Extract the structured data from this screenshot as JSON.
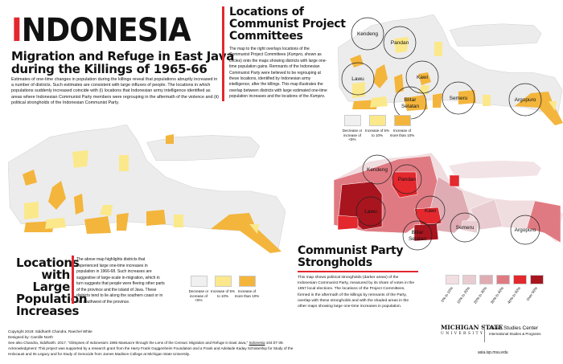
{
  "header": {
    "title_initial": "I",
    "title_rest": "NDONESIA",
    "subtitle": "Migration and Refuge in East Java during the Killings of 1965-66",
    "intro": "Estimates of one-time changes in population during the killings reveal that populations abruptly increased in a number of districts. Such estimates are consistent with large influxes of people. The locations in which populations suddenly increased coincide with (i) locations that Indonesian army intelligence identified as areas where Indonesian Communist Party members were regrouping in the aftermath of the violence and (ii) political strongholds of the Indonesian Communist Party."
  },
  "kompro": {
    "heading": "Locations of Communist Project Committees",
    "body_1": "The map to the right overlays locations of the Communist Project Committees (",
    "body_em": "Kompro",
    "body_2": ", shown as circles) onto the maps showing districts with large one-time population gains. Remnants of the Indonesian Communist Party were believed to be regrouping at these locations, identified by Indonesian army intelligence, after the killings. This map illustrates the overlap between districts with large estimated one-time population increases and the locations of the ",
    "body_em2": "Kompro",
    "body_3": "."
  },
  "places": [
    "Kendeng",
    "Pandan",
    "Lawu",
    "Kawi",
    "Blitar",
    "Selatan",
    "Semeru",
    "Argopuro"
  ],
  "population": {
    "heading": "Locations with Large Population Increases",
    "body": "The above map highlights districts that experienced large one-time increases in population in 1966-68. Such increases are suggestive of large-scale in-migration, which in turn suggests that people were fleeing other parts of the province and the island of Java. These districts tend to lie along the southern coast or in the southwest of the province.",
    "legend": [
      {
        "label": "Decrease or increase of <5%",
        "color": "#f0f0f0"
      },
      {
        "label": "Increase of 5% to 10%",
        "color": "#fbe88a"
      },
      {
        "label": "Increase of more than 10%",
        "color": "#f3b53c"
      }
    ]
  },
  "strongholds": {
    "heading": "Communist Party Strongholds",
    "body": "This map shows political strongholds (darker areas) of the Indonesian Communist Party, measured by its share of votes in the 1957 local elections. The locations of the Project Committees, formed in the aftermath of the killings by remnants of the Party, overlap with these strongholds and with the shaded areas in the other maps showing large one-time increases in population.",
    "legend": [
      {
        "label": "0% to 10%",
        "color": "#f2dfe2"
      },
      {
        "label": "10% to 20%",
        "color": "#e9ccd1"
      },
      {
        "label": "20% to 30%",
        "color": "#dfacb4"
      },
      {
        "label": "30% to 40%",
        "color": "#e07a82"
      },
      {
        "label": "40% to 50%",
        "color": "#e3282e"
      },
      {
        "label": "Over 50%",
        "color": "#a8151f"
      }
    ]
  },
  "credits": {
    "copyright": "Copyright 2018: Siddharth Chandra, Raechel White",
    "designed": "Designed by: Camille North",
    "see_also_1": "See also Chandra, Siddharth. 2017. \"Glimpses of Indonesia's 1965 Massacre through the Lens of the Census: Migration and Refuge in East Java,\" ",
    "see_also_journal": "Indonesia",
    "see_also_2": " 104:07-39.",
    "ack": "Acknowledgment: This project was supported by a research grant from the Harry Frank Guggenheim Foundation and a Frank and Adelaide Kaday Scholarship for Study of the Holocaust and Its Legacy and for Study of Genocide from James Madison College at Michigan State University."
  },
  "footer": {
    "msu": "MICHIGAN STATE",
    "msu_sub": "UNIVERSITY",
    "center": "Asian Studies Center",
    "center_sub": "International Studies & Programs",
    "url": "asia.isp.msu.edu"
  },
  "colors": {
    "accent": "#e3282e",
    "base_map": "#ececec"
  }
}
